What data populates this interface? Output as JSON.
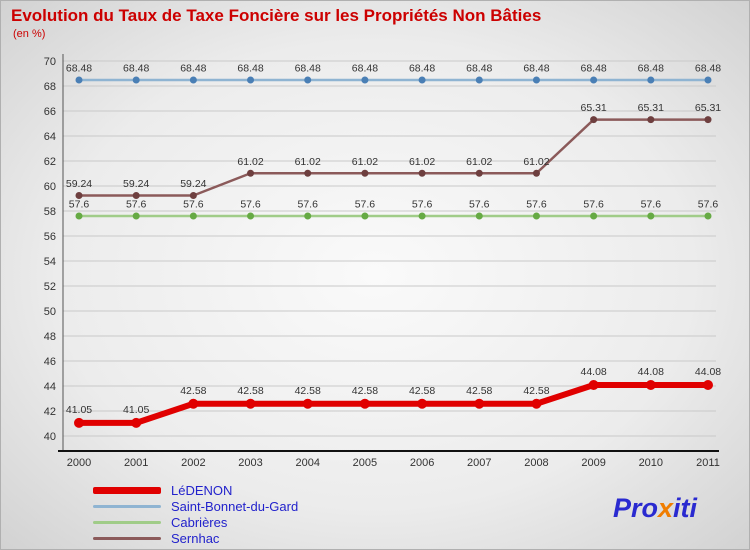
{
  "title": "Evolution du Taux de Taxe Foncière sur les Propriétés Non Bâties",
  "subtitle": "(en %)",
  "chart_data": {
    "type": "line",
    "x": [
      2000,
      2001,
      2002,
      2003,
      2004,
      2005,
      2006,
      2007,
      2008,
      2009,
      2010,
      2011
    ],
    "ylim": [
      40,
      70
    ],
    "ytick_step": 2,
    "grid": true,
    "legend_position": "bottom-left",
    "label_color": "#333333",
    "grid_color": "#c9c9c9",
    "axis_color": "#333333",
    "series": [
      {
        "name": "LéDENON",
        "color": "#e00000",
        "marker_color": "#e00000",
        "line_width": 6,
        "marker_radius": 5,
        "values": [
          41.05,
          41.05,
          42.58,
          42.58,
          42.58,
          42.58,
          42.58,
          42.58,
          42.58,
          44.08,
          44.08,
          44.08
        ]
      },
      {
        "name": "Saint-Bonnet-du-Gard",
        "color": "#8fb4d2",
        "marker_color": "#4a7fb5",
        "line_width": 2.5,
        "marker_radius": 3.5,
        "values": [
          68.48,
          68.48,
          68.48,
          68.48,
          68.48,
          68.48,
          68.48,
          68.48,
          68.48,
          68.48,
          68.48,
          68.48
        ]
      },
      {
        "name": "Cabrières",
        "color": "#a0cc88",
        "marker_color": "#66aa44",
        "line_width": 2.5,
        "marker_radius": 3.5,
        "values": [
          57.6,
          57.6,
          57.6,
          57.6,
          57.6,
          57.6,
          57.6,
          57.6,
          57.6,
          57.6,
          57.6,
          57.6
        ]
      },
      {
        "name": "Sernhac",
        "color": "#8b5a5a",
        "marker_color": "#6e3f3f",
        "line_width": 2.5,
        "marker_radius": 3.5,
        "values": [
          59.24,
          59.24,
          59.24,
          61.02,
          61.02,
          61.02,
          61.02,
          61.02,
          61.02,
          65.31,
          65.31,
          65.31
        ]
      }
    ]
  },
  "logo": {
    "pro": "Pro",
    "x": "x",
    "iti": "iti"
  }
}
